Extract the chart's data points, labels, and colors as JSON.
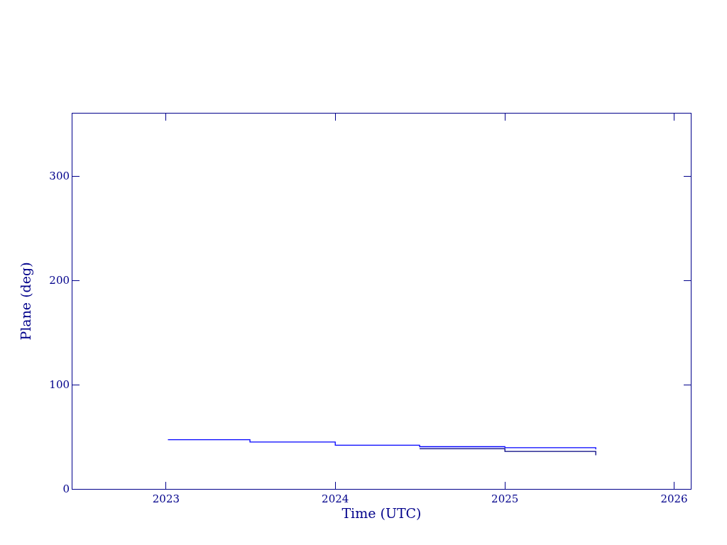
{
  "chart_data": {
    "type": "step",
    "xlabel": "Time (UTC)",
    "ylabel": "Plane (deg)",
    "series": [
      {
        "color": "#0000ff",
        "x": [
          "2023-01-05",
          "2023-07-01",
          "2024-01-01",
          "2024-07-01",
          "2025-01-01",
          "2025-07-16"
        ],
        "values": [
          47.2,
          45,
          42,
          40.5,
          39.5,
          38
        ]
      },
      {
        "color": "#000080",
        "x": [
          "2024-07-01",
          "2025-01-01",
          "2025-07-16"
        ],
        "values": [
          38.5,
          36,
          32.3
        ]
      }
    ],
    "xlim": [
      "2022-06-13",
      "2026-02-06"
    ],
    "xticks": [
      {
        "value": "2023-01-01",
        "label": "2023"
      },
      {
        "value": "2024-01-01",
        "label": "2024"
      },
      {
        "value": "2025-01-01",
        "label": "2025"
      },
      {
        "value": "2026-01-01",
        "label": "2026"
      }
    ],
    "ylim": [
      0,
      360
    ],
    "yticks": [
      0,
      100,
      200,
      300
    ]
  }
}
